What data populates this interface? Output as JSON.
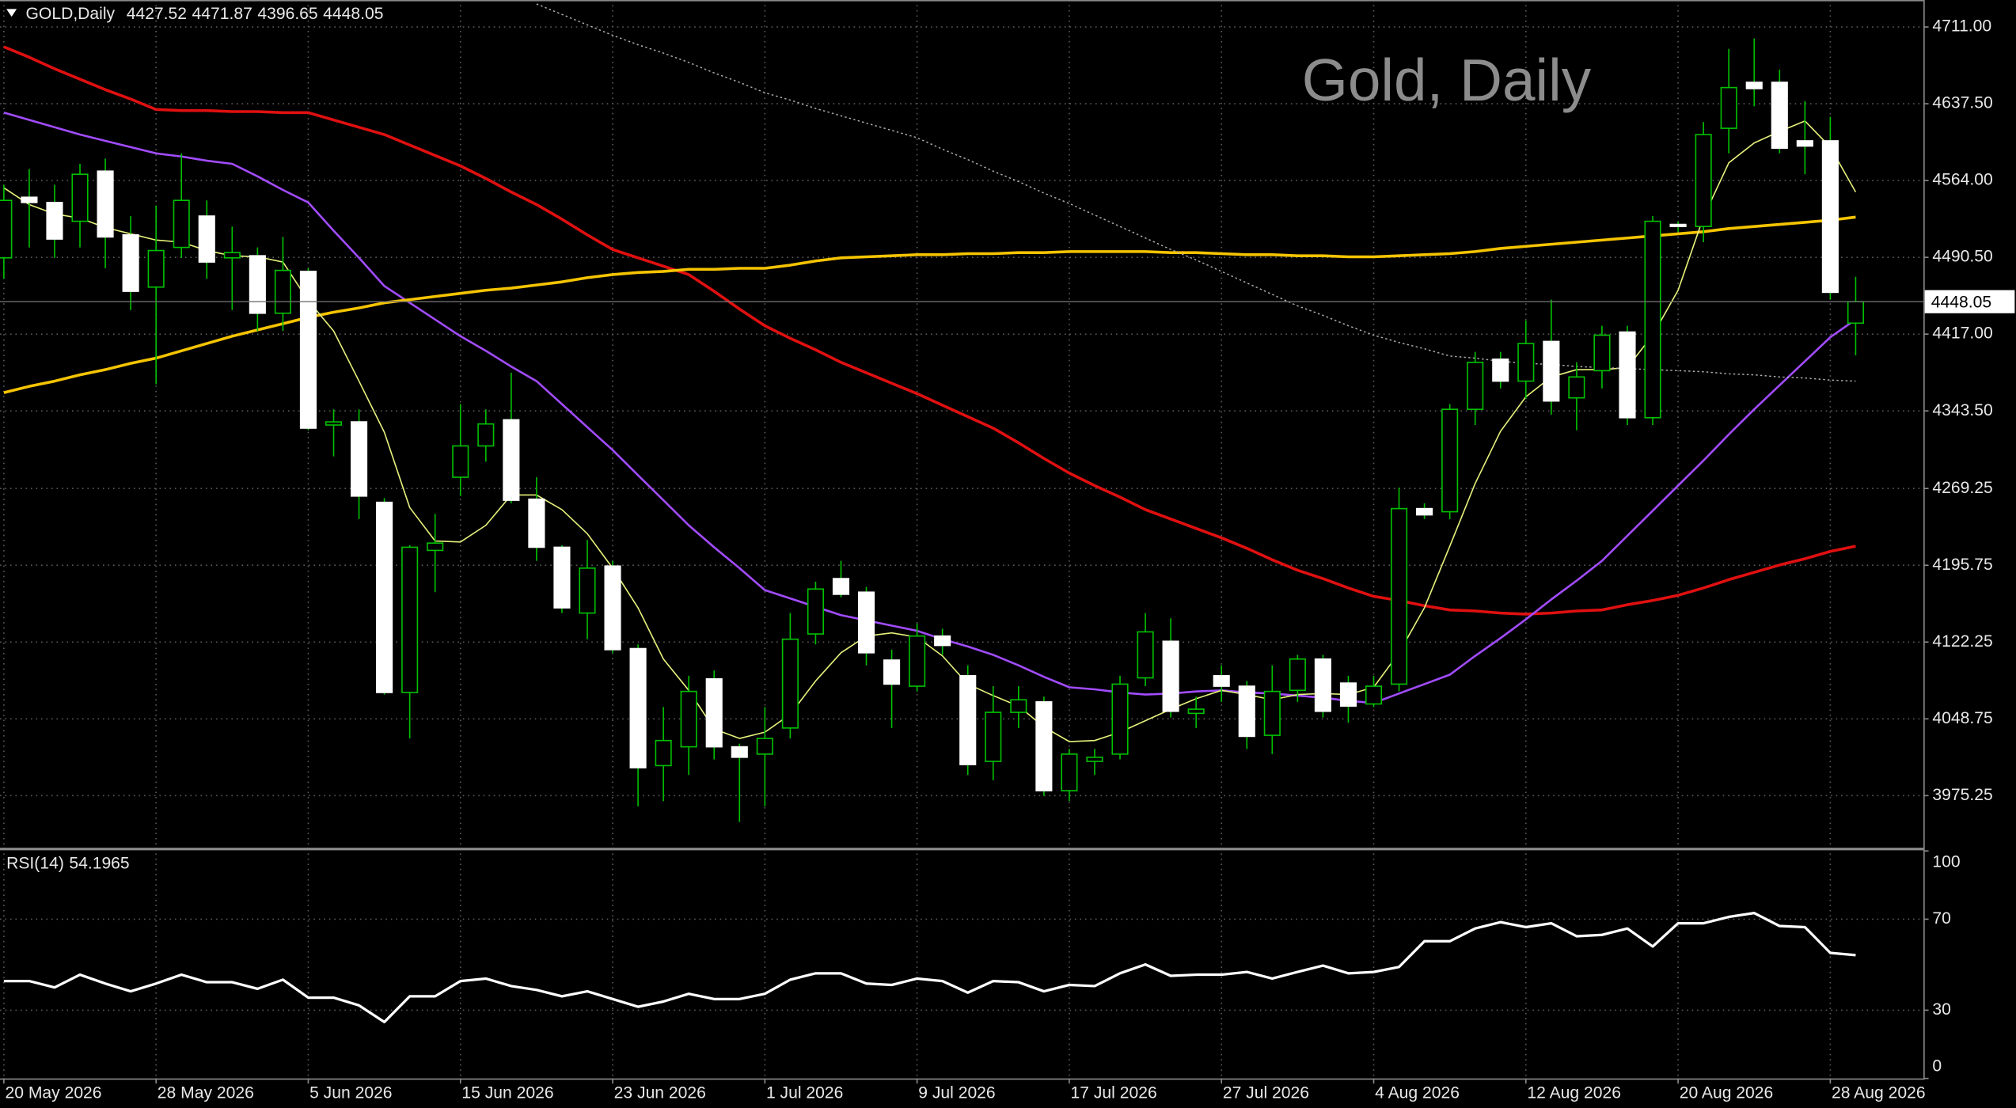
{
  "chart_data": {
    "type": "candlestick",
    "title": "Gold, Daily",
    "symbol": "GOLD,Daily",
    "categories": [
      "20 May 2026",
      null,
      null,
      null,
      null,
      null,
      "28 May 2026",
      null,
      null,
      null,
      null,
      null,
      "5 Jun 2026",
      null,
      null,
      null,
      null,
      null,
      "15 Jun 2026",
      null,
      null,
      null,
      null,
      null,
      "23 Jun 2026",
      null,
      null,
      null,
      null,
      null,
      "1 Jul 2026",
      null,
      null,
      null,
      null,
      null,
      "9 Jul 2026",
      null,
      null,
      null,
      null,
      null,
      "17 Jul 2026",
      null,
      null,
      null,
      null,
      null,
      "27 Jul 2026",
      null,
      null,
      null,
      null,
      null,
      "4 Aug 2026",
      null,
      null,
      null,
      null,
      null,
      "12 Aug 2026",
      null,
      null,
      null,
      null,
      null,
      "20 Aug 2026",
      null,
      null,
      null,
      null,
      null,
      "28 Aug 2026",
      null
    ],
    "open": [
      4490,
      4548,
      4543,
      4525,
      4573,
      4512,
      4462,
      4500,
      4530,
      4490,
      4492,
      4437,
      4477,
      4330,
      4333,
      4256,
      4074,
      4210,
      4280,
      4310,
      4335,
      4259,
      4213,
      4150,
      4195,
      4116,
      4004,
      4022,
      4087,
      4022,
      4015,
      4040,
      4130,
      4183,
      4170,
      4105,
      4080,
      4128,
      4090,
      4008,
      4055,
      4065,
      3980,
      4008,
      4015,
      4088,
      4123,
      4054,
      4090,
      4080,
      4033,
      4076,
      4106,
      4083,
      4063,
      4082,
      4250,
      4247,
      4345,
      4393,
      4372,
      4410,
      4356,
      4382,
      4419,
      4337,
      4522,
      4520,
      4614,
      4658,
      4658,
      4602,
      4602,
      4427.52
    ],
    "high": [
      4560,
      4575,
      4560,
      4580,
      4585,
      4530,
      4540,
      4590,
      4545,
      4520,
      4500,
      4510,
      4480,
      4345,
      4345,
      4260,
      4215,
      4245,
      4350,
      4345,
      4380,
      4280,
      4215,
      4220,
      4200,
      4120,
      4060,
      4090,
      4095,
      4025,
      4060,
      4150,
      4180,
      4200,
      4175,
      4115,
      4140,
      4135,
      4100,
      4080,
      4080,
      4070,
      4020,
      4020,
      4090,
      4150,
      4145,
      4070,
      4100,
      4085,
      4100,
      4110,
      4110,
      4090,
      4090,
      4270,
      4255,
      4350,
      4400,
      4400,
      4430,
      4450,
      4390,
      4425,
      4425,
      4530,
      4525,
      4620,
      4690,
      4700,
      4670,
      4640,
      4625,
      4471.87
    ],
    "low": [
      4470,
      4500,
      4490,
      4500,
      4480,
      4440,
      4369,
      4490,
      4470,
      4440,
      4420,
      4420,
      4325,
      4300,
      4240,
      4072,
      4030,
      4170,
      4262,
      4295,
      4255,
      4200,
      4150,
      4125,
      4112,
      3965,
      3970,
      3995,
      4010,
      3950,
      3965,
      4030,
      4120,
      4165,
      4100,
      4040,
      4075,
      4110,
      3995,
      3990,
      4040,
      3975,
      3970,
      3995,
      4010,
      4080,
      4050,
      4040,
      4065,
      4020,
      4015,
      4065,
      4050,
      4045,
      4060,
      4075,
      4240,
      4240,
      4330,
      4365,
      4355,
      4340,
      4325,
      4365,
      4330,
      4330,
      4515,
      4505,
      4590,
      4635,
      4590,
      4570,
      4450,
      4396.65
    ],
    "close": [
      4545,
      4543,
      4508,
      4570,
      4510,
      4458,
      4497,
      4545,
      4486,
      4495,
      4437,
      4478,
      4327,
      4333,
      4262,
      4074,
      4213,
      4217,
      4310,
      4331,
      4258,
      4213,
      4155,
      4193,
      4115,
      4002,
      4028,
      4075,
      4022,
      4012,
      4030,
      4125,
      4173,
      4168,
      4112,
      4082,
      4128,
      4119,
      4005,
      4055,
      4067,
      3980,
      4015,
      4012,
      4082,
      4132,
      4056,
      4058,
      4080,
      4032,
      4075,
      4106,
      4056,
      4061,
      4080,
      4250,
      4244,
      4345,
      4390,
      4372,
      4408,
      4353,
      4376,
      4416,
      4337,
      4525,
      4520,
      4608,
      4653,
      4652,
      4595,
      4597,
      4457,
      4448.05
    ],
    "up_color": "#000000",
    "down_color": "#ffffff",
    "wick_color": "#00c000",
    "ylim": [
      3924.8,
      4736.8
    ],
    "yticks": [
      {
        "value": 4711,
        "label": "4711.00"
      },
      {
        "value": 4637.5,
        "label": "4637.50"
      },
      {
        "value": 4564,
        "label": "4564.00"
      },
      {
        "value": 4490.5,
        "label": "4490.50"
      },
      {
        "value": 4417,
        "label": "4417.00"
      },
      {
        "value": 4343.5,
        "label": "4343.50"
      },
      4269.25,
      4195.75,
      4122.25,
      4048.75,
      3975.25
    ],
    "grid": true,
    "overlays": [
      {
        "color": "#e01010",
        "style": "thick",
        "values": [
          4692,
          4682,
          4671,
          4661,
          4651,
          4642,
          4632,
          4631,
          4631,
          4630,
          4630,
          4629,
          4629,
          4622,
          4615,
          4608,
          4598,
          4588,
          4578,
          4566,
          4553,
          4541,
          4527,
          4512,
          4498,
          4490,
          4482,
          4474,
          4458,
          4441,
          4425,
          4413,
          4402,
          4390,
          4380,
          4370,
          4360,
          4349,
          4338,
          4327,
          4313,
          4298,
          4284,
          4272,
          4261,
          4249,
          4240,
          4231,
          4222,
          4212,
          4201,
          4191,
          4183,
          4174,
          4166,
          4162,
          4157,
          4153,
          4152,
          4150,
          4149,
          4150,
          4152,
          4153,
          4158,
          4162,
          4167,
          4174,
          4182,
          4189,
          4196,
          4202,
          4209,
          4214
        ]
      },
      {
        "color": "#a24cff",
        "style": "medium",
        "values": [
          4629,
          4622,
          4615,
          4608,
          4602,
          4596,
          4590,
          4587,
          4583,
          4580,
          4568,
          4555,
          4543,
          4516,
          4490,
          4463,
          4447,
          4431,
          4415,
          4401,
          4386,
          4372,
          4350,
          4328,
          4306,
          4282,
          4258,
          4234,
          4213,
          4193,
          4172,
          4164,
          4156,
          4148,
          4143,
          4138,
          4133,
          4125,
          4118,
          4110,
          4100,
          4089,
          4079,
          4077,
          4074,
          4072,
          4073,
          4075,
          4076,
          4074,
          4073,
          4071,
          4069,
          4066,
          4064,
          4073,
          4082,
          4091,
          4109,
          4126,
          4144,
          4163,
          4181,
          4200,
          4224,
          4248,
          4272,
          4296,
          4321,
          4345,
          4368,
          4391,
          4414,
          4431
        ]
      },
      {
        "color": "#f5c400",
        "style": "thick",
        "values": [
          4361,
          4367,
          4372,
          4378,
          4383,
          4389,
          4394,
          4401,
          4408,
          4415,
          4421,
          4427,
          4433,
          4438,
          4442,
          4447,
          4450,
          4453,
          4456,
          4459,
          4461,
          4464,
          4467,
          4471,
          4474,
          4476,
          4477,
          4479,
          4479,
          4480,
          4480,
          4483,
          4487,
          4490,
          4491,
          4492,
          4493,
          4493,
          4494,
          4494,
          4495,
          4495,
          4496,
          4496,
          4496,
          4496,
          4495,
          4495,
          4494,
          4493,
          4493,
          4492,
          4492,
          4491,
          4491,
          4492,
          4493,
          4494,
          4496,
          4499,
          4501,
          4503,
          4505,
          4507,
          4509,
          4511,
          4513,
          4515,
          4518,
          4520,
          4522,
          4524,
          4526,
          4529
        ]
      },
      {
        "color": "#e6f07a",
        "style": "thin",
        "values": [
          4557,
          4541,
          4532,
          4528,
          4519,
          4513,
          4507,
          4505,
          4497,
          4492,
          4491,
          4486,
          4449,
          4420,
          4372,
          4323,
          4251,
          4219,
          4218,
          4234,
          4263,
          4263,
          4249,
          4226,
          4193,
          4155,
          4106,
          4076,
          4039,
          4030,
          4036,
          4053,
          4085,
          4112,
          4128,
          4131,
          4127,
          4109,
          4082,
          4071,
          4061,
          4041,
          4027,
          4028,
          4036,
          4047,
          4058,
          4068,
          4076,
          4072,
          4067,
          4072,
          4073,
          4072,
          4079,
          4112,
          4155,
          4214,
          4274,
          4324,
          4357,
          4376,
          4383,
          4383,
          4385,
          4416,
          4459,
          4529,
          4581,
          4600,
          4611,
          4621,
          4596,
          4553
        ]
      },
      {
        "color": "#b0b0b0",
        "style": "dotted",
        "values": [
          null,
          null,
          null,
          null,
          null,
          null,
          null,
          null,
          null,
          null,
          null,
          null,
          null,
          null,
          null,
          null,
          null,
          null,
          null,
          null,
          null,
          4733,
          4723,
          4713,
          4703,
          4694,
          4686,
          4677,
          4667,
          4658,
          4648,
          4641,
          4633,
          4626,
          4619,
          4612,
          4605,
          4594,
          4584,
          4573,
          4563,
          4552,
          4542,
          4531,
          4520,
          4509,
          4498,
          4488,
          4477,
          4466,
          4455,
          4444,
          4435,
          4425,
          4416,
          4409,
          4403,
          4396,
          4394,
          4391,
          4389,
          4388,
          4386,
          4385,
          4384,
          4383,
          4382,
          4381,
          4379,
          4378,
          4376,
          4375,
          4373,
          4372
        ]
      }
    ],
    "rsi": {
      "label": "RSI(14)",
      "color": "#ffffff",
      "ylim": [
        0,
        100
      ],
      "yticks": [
        100,
        70,
        30,
        0
      ],
      "values": [
        42.8,
        42.8,
        40.0,
        45.6,
        41.7,
        38.3,
        41.7,
        45.6,
        42.3,
        42.3,
        39.4,
        43.4,
        35.5,
        35.5,
        32.1,
        24.8,
        36.1,
        36.1,
        42.8,
        43.9,
        40.6,
        38.9,
        36.1,
        38.3,
        34.9,
        31.5,
        33.8,
        37.2,
        34.9,
        34.9,
        37.2,
        43.4,
        46.2,
        46.2,
        41.7,
        41.1,
        43.9,
        42.8,
        37.7,
        42.8,
        42.3,
        38.3,
        41.1,
        40.6,
        46.2,
        50.1,
        45.1,
        45.6,
        45.6,
        46.8,
        43.9,
        46.8,
        49.6,
        46.2,
        46.8,
        49.0,
        60.3,
        60.3,
        65.9,
        68.7,
        66.5,
        68.2,
        62.5,
        63.1,
        65.9,
        58.0,
        68.2,
        68.2,
        71.0,
        72.7,
        67.0,
        66.5,
        55.2,
        54.1965
      ]
    }
  }
}
